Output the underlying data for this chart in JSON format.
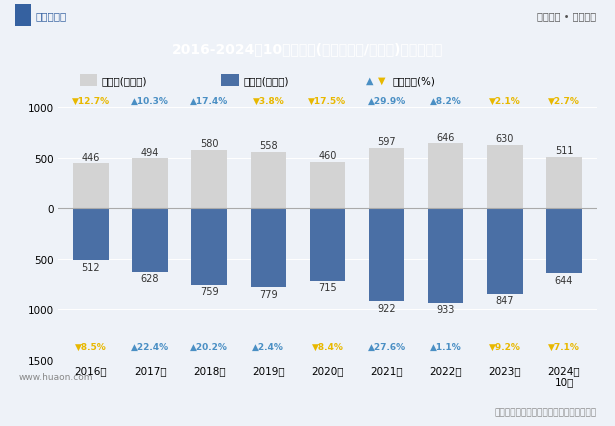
{
  "years": [
    "2016年",
    "2017年",
    "2018年",
    "2019年",
    "2020年",
    "2021年",
    "2022年",
    "2023年",
    "2024年\n10月"
  ],
  "export_vals": [
    446,
    494,
    580,
    558,
    460,
    597,
    646,
    630,
    511
  ],
  "import_vals": [
    512,
    628,
    759,
    779,
    715,
    922,
    933,
    847,
    644
  ],
  "export_growth": [
    -12.7,
    10.3,
    17.4,
    -3.8,
    -17.5,
    29.9,
    8.2,
    -2.1,
    -2.7
  ],
  "import_growth": [
    -8.5,
    22.4,
    20.2,
    2.4,
    -8.4,
    27.6,
    1.1,
    -9.2,
    -7.1
  ],
  "export_color": "#d3d3d3",
  "import_color": "#4a6fa5",
  "up_color": "#4a8fc4",
  "down_color": "#e8b800",
  "title": "2016-2024年10月辽宁省(境内目的地/货源地)进、出口额",
  "title_bg_color": "#3561a0",
  "title_text_color": "#ffffff",
  "bg_color": "#eef2f8",
  "legend_export": "出口额(亿美元)",
  "legend_import": "进口额(亿美元)",
  "legend_growth": "同比增长(%)",
  "watermark_text": "www.huaon.com",
  "source_text": "数据来源：中国海关、华经产业研究院整理",
  "logo_text": "华经情报网",
  "slogan_text": "专业严谨 • 客观科学"
}
